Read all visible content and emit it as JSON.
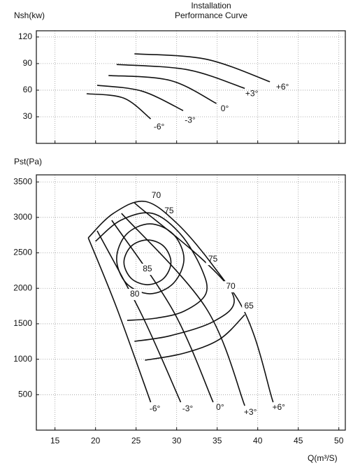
{
  "chart_data": [
    {
      "type": "line",
      "title": "Installation",
      "subtitle": "Performance Curve",
      "y_label": "Nsh(kw)",
      "xlim": [
        12.7,
        50.8
      ],
      "ylim": [
        0,
        127
      ],
      "yticks": [
        30,
        60,
        90,
        120
      ],
      "xticks": [
        15,
        20,
        25,
        30,
        35,
        40,
        45,
        50
      ],
      "grid": true,
      "color": "#111111",
      "series": [
        {
          "name": "-6°",
          "x": [
            18.9,
            23.5,
            26.8
          ],
          "y": [
            56,
            51,
            27.6
          ]
        },
        {
          "name": "-3°",
          "x": [
            20.2,
            25.7,
            30.8
          ],
          "y": [
            65.5,
            59,
            37
          ]
        },
        {
          "name": "0°",
          "x": [
            21.6,
            29.2,
            34.9
          ],
          "y": [
            76.6,
            71,
            45
          ]
        },
        {
          "name": "+3°",
          "x": [
            22.6,
            31.4,
            38.4
          ],
          "y": [
            89,
            83,
            62
          ]
        },
        {
          "name": "+6°",
          "x": [
            24.8,
            33.6,
            41.5
          ],
          "y": [
            101,
            95,
            69.5
          ]
        }
      ]
    },
    {
      "type": "line",
      "y_label": "Pst(Pa)",
      "x_label": "Q(m³/S)",
      "xlim": [
        12.7,
        50.8
      ],
      "ylim": [
        0,
        3600
      ],
      "xticks": [
        15,
        20,
        25,
        30,
        35,
        40,
        45,
        50
      ],
      "yticks": [
        500,
        1000,
        1500,
        2000,
        2500,
        3000,
        3500
      ],
      "grid": true,
      "color": "#111111",
      "series": [
        {
          "name": "-6°",
          "x": [
            19.1,
            22.6,
            26.8
          ],
          "y": [
            2712,
            1726,
            394
          ]
        },
        {
          "name": "-3°",
          "x": [
            20.2,
            25.7,
            30.5
          ],
          "y": [
            2811,
            1627,
            394
          ]
        },
        {
          "name": "0°",
          "x": [
            22,
            29.6,
            34.5
          ],
          "y": [
            2959,
            1677,
            394
          ]
        },
        {
          "name": "+3°",
          "x": [
            23.2,
            33.6,
            38.4
          ],
          "y": [
            3057,
            1726,
            345
          ]
        },
        {
          "name": "+6°",
          "x": [
            24.8,
            37.1,
            41.9
          ],
          "y": [
            3205,
            1923,
            394
          ]
        }
      ],
      "contours": [
        {
          "name": "85",
          "closed": true,
          "x": [
            29.3,
            28.4,
            26.4,
            24.4,
            23.5,
            24.4,
            26.4,
            28.4
          ],
          "y": [
            2367,
            2594,
            2682,
            2594,
            2367,
            2140,
            2051,
            2140
          ]
        },
        {
          "name": "80",
          "closed": true,
          "x": [
            30.9,
            29.6,
            26.7,
            23.8,
            22.6,
            23.8,
            26.7,
            29.6
          ],
          "y": [
            2416,
            2761,
            2909,
            2761,
            2416,
            2071,
            1923,
            2071
          ]
        },
        {
          "name": "75",
          "closed": false,
          "x": [
            20.0,
            23.1,
            27.0,
            30.5,
            33.1,
            33.6,
            30.9,
            27.4,
            23.9
          ],
          "y": [
            2663,
            2959,
            3057,
            2761,
            2268,
            1923,
            1677,
            1578,
            1548
          ]
        },
        {
          "name": "70",
          "closed": false,
          "x": [
            19.1,
            22.2,
            26.1,
            30.1,
            34.5,
            37.1,
            34.5,
            29.2,
            24.8
          ],
          "y": [
            2712,
            3057,
            3225,
            2909,
            2318,
            1824,
            1529,
            1331,
            1252
          ]
        },
        {
          "name": "65",
          "closed": false,
          "x": [
            26.1,
            30.9,
            35.3,
            38.4
          ],
          "y": [
            986,
            1085,
            1282,
            1627
          ]
        }
      ]
    }
  ]
}
